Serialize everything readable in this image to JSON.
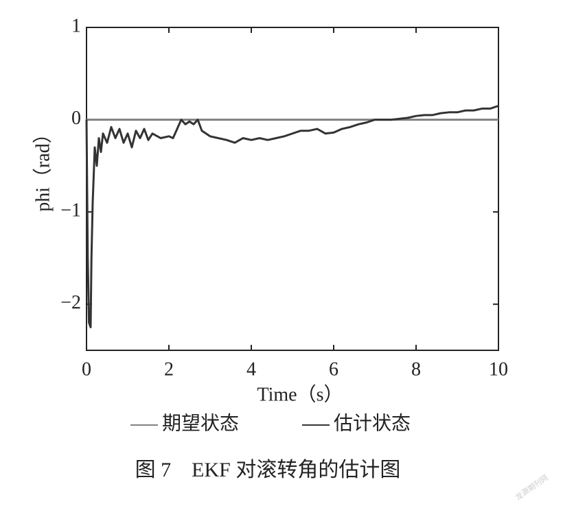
{
  "chart_data": {
    "type": "line",
    "xlabel": "Time（s）",
    "ylabel": "phi（rad）",
    "caption": "图 7　EKF 对滚转角的估计图",
    "watermark": "龙源期刊网",
    "xlim": [
      0,
      10
    ],
    "xticks": [
      0,
      2,
      4,
      6,
      8,
      10
    ],
    "ylim": [
      -2.5,
      1
    ],
    "yticks": [
      {
        "value": -2,
        "label": "−2"
      },
      {
        "value": -1,
        "label": "−1"
      },
      0,
      1
    ],
    "series": [
      {
        "name": "期望状态",
        "color": "#808080",
        "x": [
          0,
          10
        ],
        "values": [
          0,
          0
        ]
      },
      {
        "name": "估计状态",
        "color": "#333333",
        "x": [
          0,
          0.03,
          0.06,
          0.1,
          0.12,
          0.15,
          0.2,
          0.25,
          0.3,
          0.35,
          0.4,
          0.5,
          0.6,
          0.7,
          0.8,
          0.9,
          1.0,
          1.1,
          1.2,
          1.3,
          1.4,
          1.5,
          1.6,
          1.8,
          2.0,
          2.1,
          2.2,
          2.3,
          2.4,
          2.5,
          2.6,
          2.7,
          2.8,
          3.0,
          3.2,
          3.4,
          3.6,
          3.8,
          4.0,
          4.2,
          4.4,
          4.6,
          4.8,
          5.0,
          5.2,
          5.4,
          5.6,
          5.8,
          6.0,
          6.2,
          6.4,
          6.6,
          6.8,
          7.0,
          7.2,
          7.4,
          7.6,
          7.8,
          8.0,
          8.2,
          8.4,
          8.6,
          8.8,
          9.0,
          9.2,
          9.4,
          9.6,
          9.8,
          10.0
        ],
        "values": [
          0,
          -1.5,
          -2.2,
          -2.25,
          -1.5,
          -0.9,
          -0.3,
          -0.5,
          -0.2,
          -0.35,
          -0.15,
          -0.25,
          -0.08,
          -0.2,
          -0.1,
          -0.25,
          -0.15,
          -0.3,
          -0.12,
          -0.2,
          -0.1,
          -0.22,
          -0.15,
          -0.2,
          -0.18,
          -0.2,
          -0.1,
          0.0,
          -0.05,
          -0.02,
          -0.05,
          0.0,
          -0.12,
          -0.18,
          -0.2,
          -0.22,
          -0.25,
          -0.2,
          -0.22,
          -0.2,
          -0.22,
          -0.2,
          -0.18,
          -0.15,
          -0.12,
          -0.12,
          -0.1,
          -0.15,
          -0.14,
          -0.1,
          -0.08,
          -0.05,
          -0.03,
          0.0,
          0.0,
          0.0,
          0.01,
          0.02,
          0.04,
          0.05,
          0.05,
          0.07,
          0.08,
          0.08,
          0.1,
          0.1,
          0.12,
          0.12,
          0.15
        ]
      }
    ]
  }
}
